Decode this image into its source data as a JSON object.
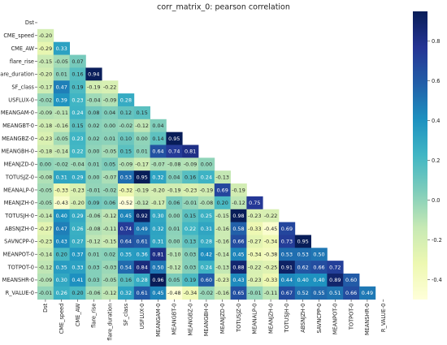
{
  "chart_data": {
    "type": "heatmap",
    "title": "corr_matrix_0: pearson correlation",
    "labels": [
      "Dst",
      "CME_speed",
      "CME_AW",
      "flare_rise",
      "flare_duration",
      "SF_class",
      "USFLUX-0",
      "MEANGAM-0",
      "MEANGBT-0",
      "MEANGBZ-0",
      "MEANGBH-0",
      "MEANJZD-0",
      "TOTUSJZ-0",
      "MEANALP-0",
      "MEANJZH-0",
      "TOTUSJH-0",
      "ABSNJZH-0",
      "SAVNCPP-0",
      "MEANPOT-0",
      "TOTPOT-0",
      "MEANSHR-0",
      "R_VALUE-0"
    ],
    "rows": [
      [],
      [
        -0.2
      ],
      [
        -0.29,
        0.33
      ],
      [
        -0.15,
        -0.05,
        0.07
      ],
      [
        -0.2,
        0.01,
        0.16,
        0.94
      ],
      [
        -0.17,
        0.47,
        0.19,
        -0.19,
        -0.22
      ],
      [
        -0.02,
        0.39,
        0.23,
        -0.04,
        -0.09,
        0.28
      ],
      [
        -0.09,
        -0.11,
        0.24,
        0.08,
        0.04,
        0.12,
        0.15
      ],
      [
        -0.18,
        -0.16,
        0.15,
        0.02,
        0.0,
        -0.02,
        -0.12,
        0.04
      ],
      [
        -0.23,
        -0.05,
        0.23,
        0.02,
        0.01,
        0.1,
        -0.0,
        0.14,
        0.95
      ],
      [
        -0.18,
        -0.14,
        0.22,
        0.0,
        -0.05,
        0.15,
        0.01,
        0.64,
        0.74,
        0.81
      ],
      [
        -0.0,
        -0.02,
        -0.04,
        0.01,
        0.05,
        -0.09,
        -0.17,
        -0.07,
        -0.08,
        -0.09,
        0.0
      ],
      [
        -0.08,
        0.31,
        0.29,
        0.0,
        -0.07,
        0.53,
        0.95,
        0.32,
        0.04,
        0.16,
        0.24,
        -0.13
      ],
      [
        -0.05,
        -0.33,
        -0.23,
        -0.01,
        -0.02,
        -0.32,
        -0.19,
        -0.2,
        -0.19,
        -0.23,
        -0.19,
        0.69,
        -0.19
      ],
      [
        -0.05,
        -0.43,
        -0.2,
        0.09,
        0.06,
        -0.52,
        -0.12,
        -0.17,
        0.06,
        -0.01,
        -0.08,
        0.2,
        -0.12,
        0.75
      ],
      [
        -0.14,
        0.4,
        0.29,
        -0.06,
        -0.12,
        0.45,
        0.92,
        0.3,
        0.0,
        0.15,
        0.25,
        -0.15,
        0.98,
        -0.23,
        -0.22
      ],
      [
        -0.27,
        0.47,
        0.26,
        -0.08,
        -0.11,
        0.74,
        0.49,
        0.32,
        0.01,
        0.22,
        0.31,
        -0.16,
        0.58,
        -0.33,
        -0.45,
        0.69
      ],
      [
        -0.23,
        0.43,
        0.27,
        -0.12,
        -0.15,
        0.64,
        0.61,
        0.31,
        -0.0,
        0.13,
        0.28,
        -0.16,
        0.66,
        -0.27,
        -0.34,
        0.73,
        0.95
      ],
      [
        -0.14,
        0.2,
        0.37,
        0.01,
        0.02,
        0.35,
        0.36,
        0.81,
        -0.1,
        0.03,
        0.42,
        -0.14,
        0.45,
        -0.34,
        -0.38,
        0.53,
        0.53,
        0.5
      ],
      [
        -0.12,
        0.35,
        0.33,
        0.03,
        -0.03,
        0.54,
        0.84,
        0.5,
        -0.12,
        0.03,
        0.24,
        -0.13,
        0.88,
        -0.22,
        -0.25,
        0.91,
        0.62,
        0.66,
        0.72
      ],
      [
        -0.09,
        0.3,
        0.41,
        0.03,
        -0.05,
        0.16,
        0.28,
        0.96,
        0.05,
        0.19,
        0.6,
        -0.23,
        0.43,
        -0.23,
        -0.33,
        0.44,
        0.4,
        0.4,
        0.89,
        0.6
      ],
      [
        -0.01,
        0.26,
        0.2,
        -0.06,
        -0.12,
        0.32,
        0.61,
        0.45,
        -0.48,
        -0.34,
        -0.02,
        -0.16,
        0.65,
        -0.01,
        -0.11,
        0.67,
        0.52,
        0.55,
        0.51,
        0.66,
        0.49
      ]
    ],
    "colorbar": {
      "min": -0.5,
      "max": 0.95,
      "ticks": [
        "0.8",
        "0.6",
        "0.4",
        "0.2",
        "0.0",
        "-0.2",
        "-0.4"
      ]
    },
    "colormap": "YlGnBu"
  }
}
